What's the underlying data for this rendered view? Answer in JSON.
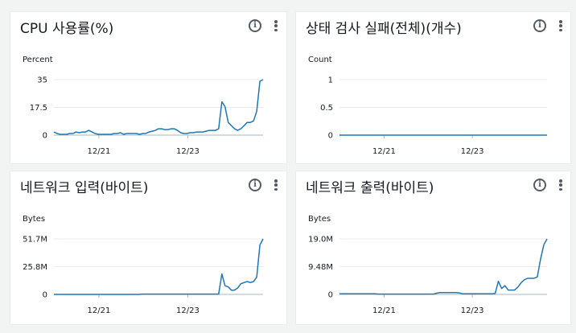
{
  "widgets": [
    {
      "title": "CPU 사용률(%)",
      "chart_data": {
        "type": "line",
        "unit_label": "Percent",
        "y_ticks": [
          "35",
          "17.5",
          "0"
        ],
        "ylim": [
          0,
          35
        ],
        "x_ticks": [
          "12/21",
          "12/23"
        ],
        "series": [
          {
            "color": "#1f77b4",
            "y": [
              2,
              1,
              0.5,
              0.5,
              0.5,
              1,
              1,
              2,
              1.5,
              2,
              2,
              3,
              2,
              1,
              0.5,
              0.5,
              0.5,
              0.5,
              0.5,
              1,
              1,
              1.5,
              0.5,
              1,
              1,
              1,
              1,
              0.5,
              1,
              1,
              2,
              2.5,
              3,
              4,
              4,
              3.5,
              3.5,
              4,
              4,
              3,
              1.5,
              1,
              1,
              1.5,
              1.5,
              2,
              2,
              2,
              2.5,
              3,
              3,
              3,
              4,
              21,
              18,
              8,
              6,
              4,
              3,
              4,
              6,
              8,
              8,
              9,
              15,
              34,
              35
            ]
          }
        ]
      }
    },
    {
      "title": "상태 검사 실패(전체)(개수)",
      "chart_data": {
        "type": "line",
        "unit_label": "Count",
        "y_ticks": [
          "1",
          "0.5",
          "0"
        ],
        "ylim": [
          0,
          1
        ],
        "x_ticks": [
          "12/21",
          "12/23"
        ],
        "series": [
          {
            "color": "#1f77b4",
            "y": [
              0,
              0,
              0,
              0,
              0,
              0,
              0,
              0,
              0,
              0,
              0,
              0,
              0,
              0,
              0,
              0,
              0,
              0,
              0,
              0,
              0,
              0,
              0,
              0,
              0,
              0,
              0,
              0,
              0,
              0,
              0,
              0,
              0,
              0,
              0,
              0,
              0,
              0,
              0,
              0,
              0,
              0,
              0,
              0,
              0,
              0,
              0,
              0,
              0,
              0,
              0,
              0,
              0,
              0,
              0,
              0,
              0,
              0,
              0,
              0,
              0,
              0,
              0,
              0,
              0,
              0,
              0
            ]
          }
        ]
      }
    },
    {
      "title": "네트워크 입력(바이트)",
      "chart_data": {
        "type": "line",
        "unit_label": "Bytes",
        "y_ticks": [
          "51.7M",
          "25.8M",
          "0"
        ],
        "ylim": [
          0,
          51.7
        ],
        "x_ticks": [
          "12/21",
          "12/23"
        ],
        "series": [
          {
            "color": "#1f77b4",
            "y": [
              0,
              0,
              0,
              0,
              0,
              0,
              0,
              0,
              0,
              0,
              0,
              0,
              0,
              0,
              0,
              0,
              0,
              0,
              0,
              0,
              0,
              0,
              0,
              0,
              0,
              0,
              0,
              0,
              0.3,
              0.3,
              0.3,
              0.3,
              0.3,
              0.3,
              0.3,
              0.3,
              0.3,
              0.3,
              0.3,
              0.3,
              0.3,
              0.3,
              0.3,
              0.3,
              0.3,
              0.3,
              0.3,
              0.3,
              0.3,
              0.3,
              0.3,
              0.3,
              0.3,
              19,
              8,
              7,
              4,
              4,
              6,
              10,
              11,
              12,
              11,
              12,
              16,
              46,
              51.7
            ]
          }
        ]
      }
    },
    {
      "title": "네트워크 출력(바이트)",
      "chart_data": {
        "type": "line",
        "unit_label": "Bytes",
        "y_ticks": [
          "19.0M",
          "9.48M",
          "0"
        ],
        "ylim": [
          0,
          19.0
        ],
        "x_ticks": [
          "12/21",
          "12/23"
        ],
        "series": [
          {
            "color": "#1f77b4",
            "y": [
              0.2,
              0.2,
              0.2,
              0.2,
              0.2,
              0.2,
              0.2,
              0.2,
              0.2,
              0.2,
              0.2,
              0.2,
              0.1,
              0.1,
              0.1,
              0.1,
              0.1,
              0.1,
              0.1,
              0.1,
              0.1,
              0.1,
              0.1,
              0.1,
              0.1,
              0.1,
              0.1,
              0.1,
              0.1,
              0.1,
              0.4,
              0.6,
              0.6,
              0.6,
              0.6,
              0.6,
              0.6,
              0.5,
              0.2,
              0.2,
              0.2,
              0.2,
              0.2,
              0.2,
              0.2,
              0.2,
              0.2,
              0.2,
              0.3,
              4.5,
              2,
              3,
              1.5,
              1.5,
              1.5,
              2.5,
              4,
              5,
              5.5,
              5.5,
              5.5,
              6,
              12,
              17,
              19.0
            ]
          }
        ]
      }
    }
  ]
}
